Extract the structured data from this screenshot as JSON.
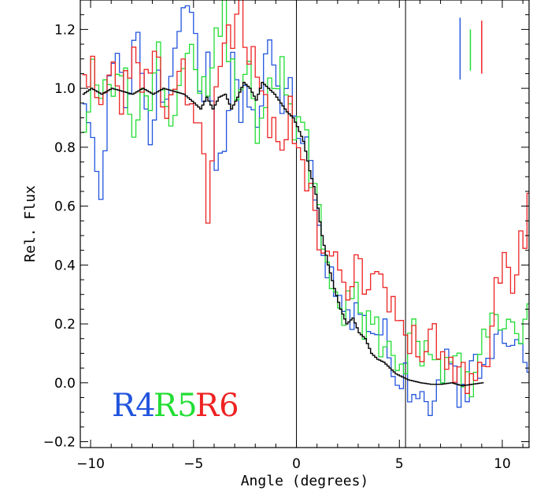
{
  "chart_data": {
    "type": "line",
    "title": "",
    "xlabel": "Angle (degrees)",
    "ylabel": "Rel. Flux",
    "xlim": [
      -10.5,
      11.3
    ],
    "ylim": [
      -0.22,
      1.3
    ],
    "x_ticks": [
      -10,
      -5,
      0,
      5,
      10
    ],
    "x_tick_labels": [
      "−10",
      "−5",
      "0",
      "5",
      "10"
    ],
    "y_ticks": [
      -0.2,
      0.0,
      0.2,
      0.4,
      0.6,
      0.8,
      1.0,
      1.2
    ],
    "y_tick_labels": [
      "−0.2",
      "0.0",
      "0.2",
      "0.4",
      "0.6",
      "0.8",
      "1.0",
      "1.2"
    ],
    "grid": false,
    "vertical_lines": [
      0,
      5.3
    ],
    "series_labels": [
      {
        "text": "R4",
        "color": "#2255dd"
      },
      {
        "text": "R5",
        "color": "#22dd33"
      },
      {
        "text": "R6",
        "color": "#ee2222"
      }
    ],
    "error_markers": [
      {
        "x": 7.95,
        "y_top": 1.24,
        "y_bottom": 1.03,
        "color": "#2255dd"
      },
      {
        "x": 8.45,
        "y_top": 1.2,
        "y_bottom": 1.06,
        "color": "#22dd33"
      },
      {
        "x": 9.0,
        "y_top": 1.23,
        "y_bottom": 1.05,
        "color": "#ee2222"
      }
    ],
    "series": [
      {
        "id": "R4",
        "color": "#2255dd",
        "step": 0.2,
        "x": [
          -10.4,
          -10.0,
          -9.6,
          -9.2,
          -8.8,
          -8.4,
          -8.0,
          -7.6,
          -7.2,
          -6.8,
          -6.4,
          -6.0,
          -5.6,
          -5.2,
          -4.8,
          -4.4,
          -4.0,
          -3.6,
          -3.2,
          -2.8,
          -2.4,
          -2.0,
          -1.6,
          -1.2,
          -0.8,
          -0.4,
          0.0,
          0.4,
          0.8,
          1.2,
          1.6,
          2.0,
          2.4,
          2.8,
          3.2,
          3.6,
          4.0,
          4.4,
          4.8,
          5.2,
          5.6,
          6.0,
          6.4,
          6.8,
          7.2,
          7.6,
          8.0,
          8.4,
          8.8,
          9.2,
          9.6,
          10.0,
          10.4,
          10.8,
          11.2
        ],
        "y": [
          0.95,
          0.78,
          0.62,
          1.05,
          1.15,
          0.9,
          1.2,
          1.1,
          0.75,
          1.05,
          0.9,
          1.1,
          1.25,
          1.3,
          0.95,
          1.1,
          0.7,
          0.85,
          1.1,
          0.9,
          1.0,
          0.8,
          1.15,
          1.05,
          0.95,
          1.0,
          0.9,
          0.78,
          0.6,
          0.45,
          0.35,
          0.28,
          0.2,
          0.3,
          0.25,
          0.18,
          0.22,
          0.1,
          0.05,
          0.02,
          -0.03,
          0.0,
          -0.05,
          -0.02,
          0.05,
          0.0,
          -0.05,
          0.02,
          0.08,
          0.12,
          0.1,
          0.15,
          0.08,
          0.12,
          0.1
        ]
      },
      {
        "id": "R5",
        "color": "#22dd33",
        "step": 0.2,
        "x": [
          -10.4,
          -10.0,
          -9.6,
          -9.2,
          -8.8,
          -8.4,
          -8.0,
          -7.6,
          -7.2,
          -6.8,
          -6.4,
          -6.0,
          -5.6,
          -5.2,
          -4.8,
          -4.4,
          -4.0,
          -3.6,
          -3.2,
          -2.8,
          -2.4,
          -2.0,
          -1.6,
          -1.2,
          -0.8,
          -0.4,
          0.0,
          0.4,
          0.8,
          1.2,
          1.6,
          2.0,
          2.4,
          2.8,
          3.2,
          3.6,
          4.0,
          4.4,
          4.8,
          5.2,
          5.6,
          6.0,
          6.4,
          6.8,
          7.2,
          7.6,
          8.0,
          8.4,
          8.8,
          9.2,
          9.6,
          10.0,
          10.4,
          10.8,
          11.2
        ],
        "y": [
          0.9,
          1.05,
          1.0,
          0.95,
          1.08,
          1.0,
          0.85,
          1.05,
          0.95,
          1.1,
          0.9,
          0.85,
          1.05,
          1.1,
          0.95,
          1.0,
          1.15,
          1.25,
          1.05,
          0.95,
          1.1,
          0.75,
          1.0,
          0.95,
          1.05,
          0.9,
          0.85,
          0.8,
          0.65,
          0.45,
          0.35,
          0.2,
          0.25,
          0.32,
          0.18,
          0.22,
          0.15,
          0.12,
          0.05,
          0.08,
          0.15,
          0.12,
          0.1,
          0.05,
          0.02,
          0.08,
          0.05,
          0.02,
          0.12,
          0.18,
          0.2,
          0.15,
          0.22,
          0.2,
          0.22
        ]
      },
      {
        "id": "R6",
        "color": "#ee2222",
        "step": 0.2,
        "x": [
          -10.4,
          -10.0,
          -9.6,
          -9.2,
          -8.8,
          -8.4,
          -8.0,
          -7.6,
          -7.2,
          -6.8,
          -6.4,
          -6.0,
          -5.6,
          -5.2,
          -4.8,
          -4.4,
          -4.0,
          -3.6,
          -3.2,
          -2.8,
          -2.4,
          -2.0,
          -1.6,
          -1.2,
          -0.8,
          -0.4,
          0.0,
          0.4,
          0.8,
          1.2,
          1.6,
          2.0,
          2.4,
          2.8,
          3.2,
          3.6,
          4.0,
          4.4,
          4.8,
          5.2,
          5.6,
          6.0,
          6.4,
          6.8,
          7.2,
          7.6,
          8.0,
          8.4,
          8.8,
          9.2,
          9.6,
          10.0,
          10.4,
          10.8,
          11.2
        ],
        "y": [
          1.0,
          1.05,
          0.9,
          1.1,
          0.95,
          1.0,
          1.15,
          0.95,
          1.05,
          1.1,
          0.9,
          1.0,
          1.05,
          0.95,
          0.85,
          0.6,
          0.95,
          1.1,
          1.2,
          1.25,
          1.15,
          1.05,
          0.95,
          0.85,
          0.75,
          0.95,
          0.8,
          0.7,
          0.55,
          0.4,
          0.48,
          0.42,
          0.3,
          0.45,
          0.35,
          0.38,
          0.42,
          0.25,
          0.2,
          0.12,
          0.2,
          0.1,
          0.18,
          0.15,
          0.1,
          0.05,
          0.0,
          -0.03,
          0.02,
          0.12,
          0.3,
          0.38,
          0.35,
          0.45,
          0.6
        ]
      },
      {
        "id": "model",
        "color": "#000000",
        "step": 0.1,
        "x": [
          -10.4,
          -10.0,
          -9.5,
          -9.0,
          -8.5,
          -8.0,
          -7.5,
          -7.0,
          -6.5,
          -6.0,
          -5.5,
          -5.0,
          -4.7,
          -4.4,
          -4.1,
          -3.8,
          -3.5,
          -3.2,
          -2.9,
          -2.6,
          -2.3,
          -2.0,
          -1.7,
          -1.4,
          -1.1,
          -0.8,
          -0.5,
          -0.2,
          0.0,
          0.3,
          0.6,
          0.9,
          1.2,
          1.5,
          1.8,
          2.1,
          2.4,
          2.7,
          3.0,
          3.3,
          3.6,
          3.9,
          4.2,
          4.5,
          4.8,
          5.1,
          5.4,
          5.7,
          6.0,
          6.5,
          7.0,
          7.5,
          8.0,
          8.5,
          9.0
        ],
        "y": [
          0.98,
          1.0,
          0.98,
          1.0,
          0.99,
          0.98,
          1.0,
          0.98,
          1.0,
          0.99,
          0.98,
          0.95,
          0.93,
          0.97,
          0.93,
          0.97,
          0.98,
          0.93,
          0.97,
          1.02,
          1.0,
          0.96,
          1.02,
          1.0,
          0.98,
          0.95,
          0.92,
          0.9,
          0.87,
          0.82,
          0.72,
          0.64,
          0.5,
          0.4,
          0.32,
          0.25,
          0.2,
          0.22,
          0.17,
          0.15,
          0.1,
          0.08,
          0.07,
          0.05,
          0.03,
          0.02,
          0.01,
          0.005,
          0.0,
          -0.005,
          -0.005,
          0.0,
          -0.01,
          -0.005,
          0.0
        ]
      }
    ]
  }
}
